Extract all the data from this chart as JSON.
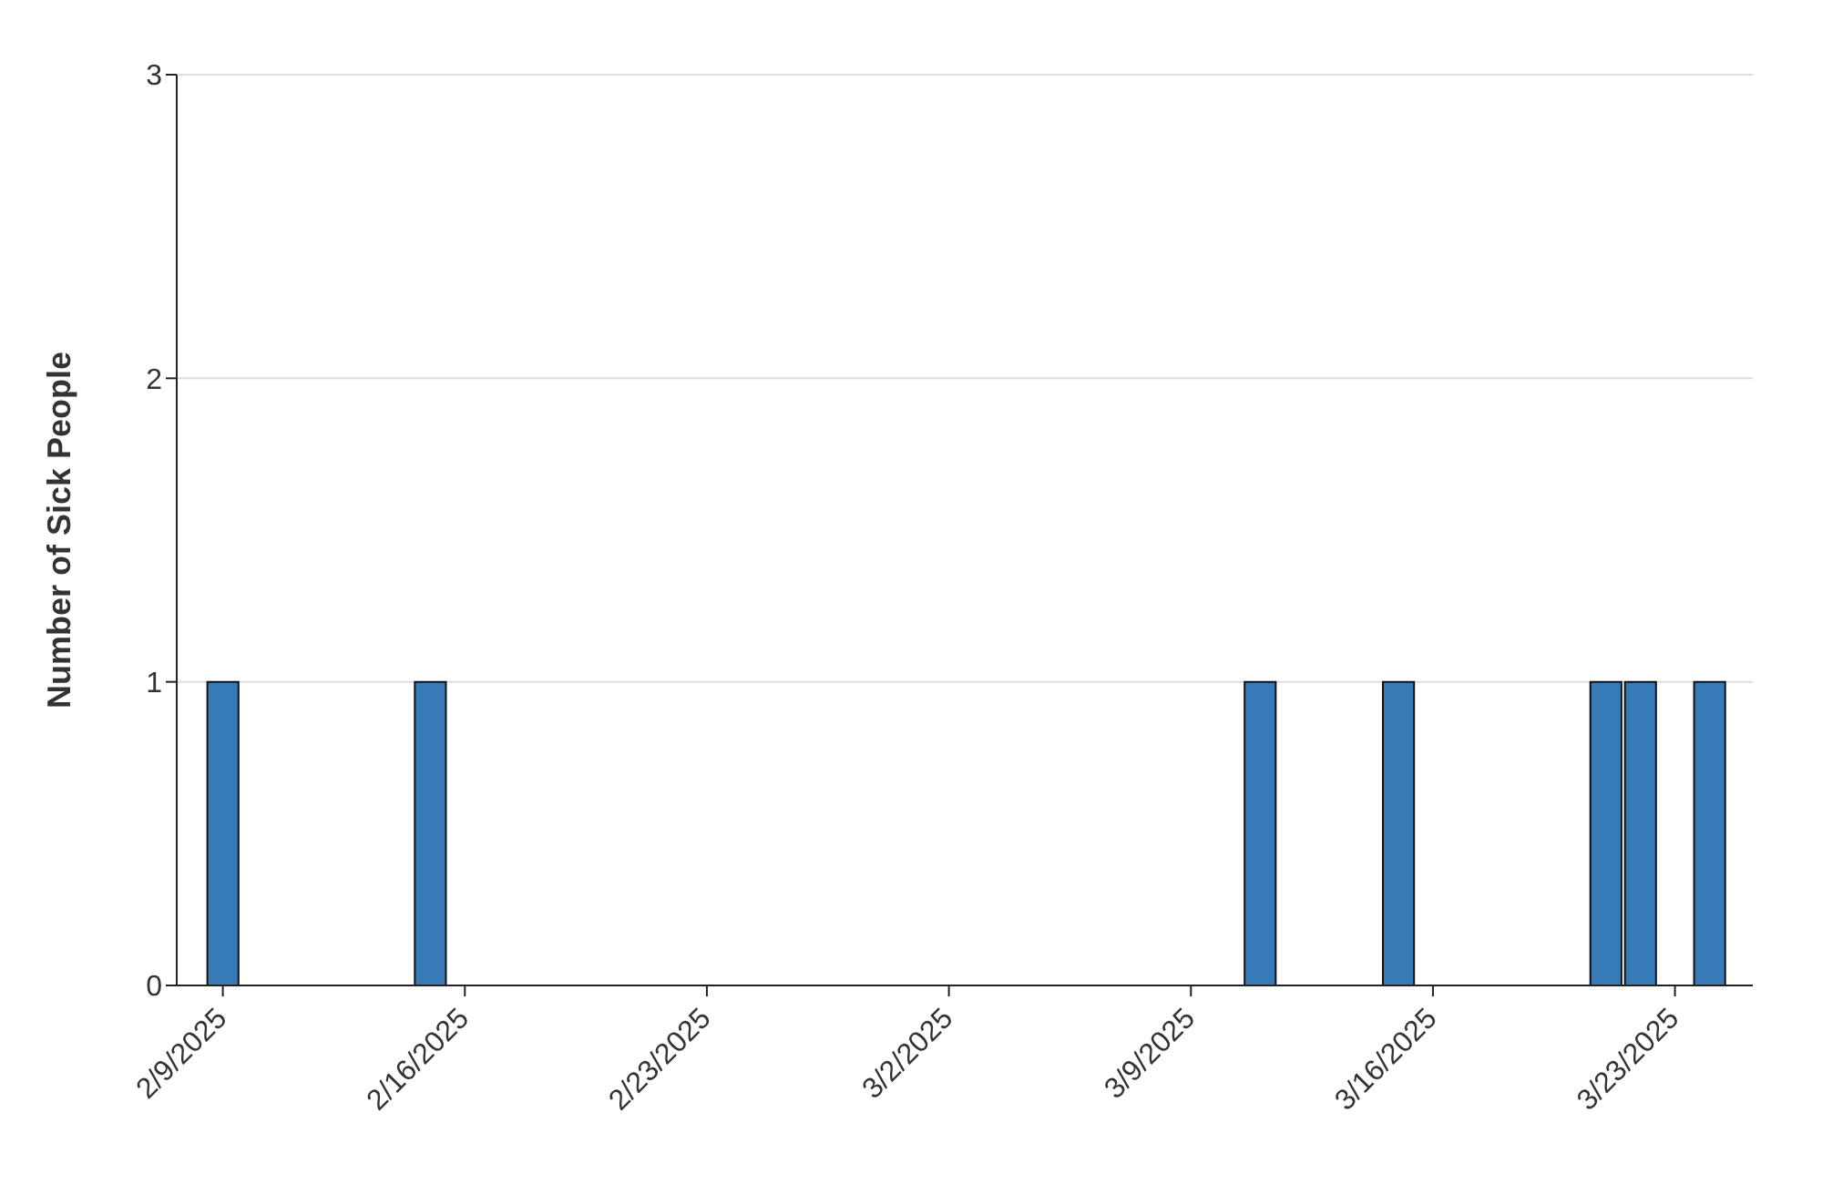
{
  "chart_data": {
    "type": "bar",
    "ylabel": "Number of Sick People",
    "x": [
      "2025-02-09",
      "2025-02-15",
      "2025-03-11",
      "2025-03-15",
      "2025-03-21",
      "2025-03-22",
      "2025-03-24"
    ],
    "values": [
      1,
      1,
      1,
      1,
      1,
      1,
      1
    ],
    "color": "#377ab8",
    "xlim": [
      "2025-02-07T16:00",
      "2025-03-25T06:00"
    ],
    "xticks": [
      {
        "value": "2025-02-09",
        "label": "2/9/2025"
      },
      {
        "value": "2025-02-16",
        "label": "2/16/2025"
      },
      {
        "value": "2025-02-23",
        "label": "2/23/2025"
      },
      {
        "value": "2025-03-02",
        "label": "3/2/2025"
      },
      {
        "value": "2025-03-09",
        "label": "3/9/2025"
      },
      {
        "value": "2025-03-16",
        "label": "3/16/2025"
      },
      {
        "value": "2025-03-23",
        "label": "3/23/2025"
      }
    ],
    "ylim": [
      0,
      3
    ],
    "yticks": [
      0,
      1,
      2,
      3
    ],
    "grid": "y"
  }
}
